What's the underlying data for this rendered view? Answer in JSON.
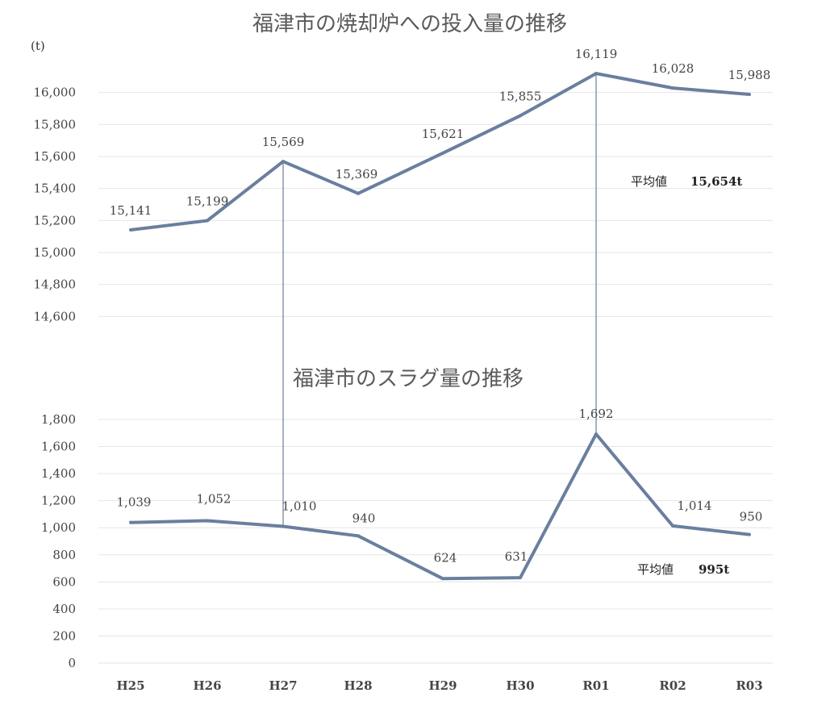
{
  "chart_data": [
    {
      "type": "line",
      "title": "福津市の焼却炉への投入量の推移",
      "unit_label": "(t)",
      "categories": [
        "H25",
        "H26",
        "H27",
        "H28",
        "H29",
        "H30",
        "R01",
        "R02",
        "R03"
      ],
      "series": [
        {
          "values": [
            15141,
            15199,
            15569,
            15369,
            15621,
            15855,
            16119,
            16028,
            15988
          ],
          "labels": [
            "15,141",
            "15,199",
            "15,569",
            "15,369",
            "15,621",
            "15,855",
            "16,119",
            "16,028",
            "15,988"
          ]
        }
      ],
      "y_ticks": [
        14600,
        14800,
        15000,
        15200,
        15400,
        15600,
        15800,
        16000
      ],
      "y_tick_labels": [
        "14,600",
        "14,800",
        "15,000",
        "15,200",
        "15,400",
        "15,600",
        "15,800",
        "16,000"
      ],
      "ylim": [
        14500,
        16200
      ],
      "average": {
        "value": 15654,
        "label": "平均値",
        "value_text": "15,654t"
      },
      "grid": true,
      "line_color": "#6a7f9e",
      "average_line_color": "#d07a8a"
    },
    {
      "type": "line",
      "title": "福津市のスラグ量の推移",
      "categories": [
        "H25",
        "H26",
        "H27",
        "H28",
        "H29",
        "H30",
        "R01",
        "R02",
        "R03"
      ],
      "series": [
        {
          "values": [
            1039,
            1052,
            1010,
            940,
            624,
            631,
            1692,
            1014,
            950
          ],
          "labels": [
            "1,039",
            "1,052",
            "1,010",
            "940",
            "624",
            "631",
            "1,692",
            "1,014",
            "950"
          ]
        }
      ],
      "y_ticks": [
        0,
        200,
        400,
        600,
        800,
        1000,
        1200,
        1400,
        1600,
        1800
      ],
      "y_tick_labels": [
        "0",
        "200",
        "400",
        "600",
        "800",
        "1,000",
        "1,200",
        "1,400",
        "1,600",
        "1,800"
      ],
      "ylim": [
        0,
        1800
      ],
      "x_tick_labels": [
        "H25",
        "H26",
        "H27",
        "H28",
        "H29",
        "H30",
        "R01",
        "R02",
        "R03"
      ],
      "average": {
        "value": 995,
        "label": "平均値",
        "value_text": "995t"
      },
      "grid": true,
      "line_color": "#6a7f9e",
      "average_line_color": "#d07a8a"
    }
  ]
}
